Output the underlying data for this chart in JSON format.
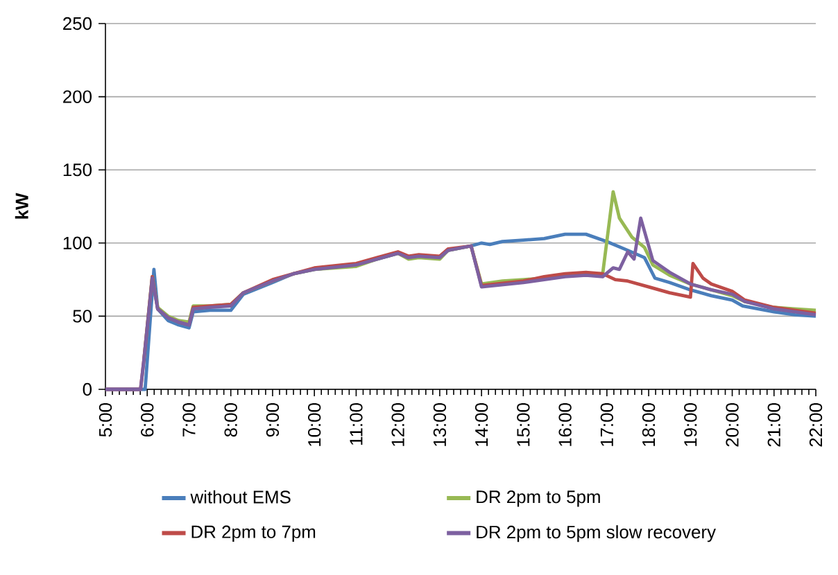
{
  "chart_data": {
    "type": "line",
    "ylabel": "kW",
    "xlim": [
      5,
      22
    ],
    "ylim": [
      0,
      250
    ],
    "xticks": [
      {
        "value": 5,
        "label": "5:00"
      },
      {
        "value": 6,
        "label": "6:00"
      },
      {
        "value": 7,
        "label": "7:00"
      },
      {
        "value": 8,
        "label": "8:00"
      },
      {
        "value": 9,
        "label": "9:00"
      },
      {
        "value": 10,
        "label": "10:00"
      },
      {
        "value": 11,
        "label": "11:00"
      },
      {
        "value": 12,
        "label": "12:00"
      },
      {
        "value": 13,
        "label": "13:00"
      },
      {
        "value": 14,
        "label": "14:00"
      },
      {
        "value": 15,
        "label": "15:00"
      },
      {
        "value": 16,
        "label": "16:00"
      },
      {
        "value": 17,
        "label": "17:00"
      },
      {
        "value": 18,
        "label": "18:00"
      },
      {
        "value": 19,
        "label": "19:00"
      },
      {
        "value": 20,
        "label": "20:00"
      },
      {
        "value": 21,
        "label": "21:00"
      },
      {
        "value": 22,
        "label": "22:00"
      }
    ],
    "yticks": [
      0,
      50,
      100,
      150,
      200,
      250
    ],
    "grid": "y",
    "legend": "bottom",
    "marker": "none",
    "line_style": "solid",
    "series": [
      {
        "name": "without EMS",
        "color": "#4a7ebb",
        "x": [
          5,
          5.84,
          5.95,
          6.16,
          6.25,
          6.5,
          6.75,
          7.0,
          7.1,
          7.5,
          8.0,
          8.3,
          9.0,
          9.5,
          10,
          11,
          11.5,
          12,
          12.25,
          12.5,
          13,
          13.2,
          13.75,
          14.0,
          14.2,
          14.5,
          15,
          15.5,
          16,
          16.5,
          17.0,
          17.5,
          17.9,
          18.15,
          18.5,
          19,
          19.5,
          20,
          20.25,
          21,
          21.5,
          22
        ],
        "values": [
          0,
          0,
          0,
          82,
          55,
          47,
          44,
          42,
          53,
          54,
          54,
          65,
          73,
          79,
          82,
          85,
          89,
          93,
          90,
          91,
          90,
          95,
          98,
          100,
          99,
          101,
          102,
          103,
          106,
          106,
          101,
          95,
          90,
          76,
          73,
          68,
          64,
          61,
          57,
          53,
          51,
          50
        ]
      },
      {
        "name": "DR 2pm to 5pm",
        "color": "#98b954",
        "x": [
          5.92,
          6.12,
          6.25,
          6.5,
          6.75,
          7.0,
          7.1,
          7.5,
          8.0,
          8.3,
          9.0,
          9.5,
          10,
          11,
          11.5,
          12,
          12.25,
          12.5,
          13,
          13.2,
          13.75,
          14.0,
          14.5,
          15,
          15.5,
          16,
          16.5,
          16.9,
          17.15,
          17.3,
          17.6,
          17.9,
          18.1,
          18.5,
          19,
          19.5,
          20,
          20.3,
          21,
          21.5,
          22
        ],
        "values": [
          20,
          77,
          56,
          50,
          47,
          46,
          57,
          57,
          58,
          66,
          74,
          79,
          82,
          84,
          89,
          93,
          89,
          90,
          89,
          95,
          98,
          72,
          74,
          75,
          76,
          78,
          79,
          79,
          135,
          117,
          104,
          97,
          85,
          78,
          72,
          68,
          64,
          60,
          56,
          55,
          54
        ]
      },
      {
        "name": "DR 2pm to 7pm",
        "color": "#be4b48",
        "x": [
          5,
          5.84,
          5.92,
          6.12,
          6.25,
          6.5,
          6.75,
          7.0,
          7.1,
          7.5,
          8.0,
          8.3,
          9.0,
          9.5,
          10,
          11,
          11.5,
          12,
          12.25,
          12.5,
          13,
          13.2,
          13.75,
          14.0,
          15,
          15.5,
          16,
          16.5,
          16.9,
          17.2,
          17.5,
          18,
          18.5,
          19,
          19.06,
          19.3,
          19.5,
          20,
          20.3,
          21,
          21.5,
          22
        ],
        "values": [
          0,
          0,
          20,
          77,
          55,
          49,
          46,
          44,
          56,
          57,
          58,
          66,
          75,
          79,
          83,
          86,
          90,
          94,
          91,
          92,
          91,
          96,
          98,
          71,
          74,
          77,
          79,
          80,
          79,
          75,
          74,
          70,
          66,
          63,
          86,
          76,
          72,
          67,
          61,
          56,
          54,
          52
        ]
      },
      {
        "name": "DR 2pm to 5pm slow recovery",
        "color": "#7d60a0",
        "x": [
          5,
          5.84,
          5.92,
          6.12,
          6.25,
          6.5,
          6.75,
          7.0,
          7.1,
          7.5,
          8.0,
          8.3,
          9.0,
          9.5,
          10,
          11,
          11.5,
          12,
          12.25,
          12.5,
          13,
          13.2,
          13.75,
          14.0,
          15,
          16,
          16.5,
          16.9,
          17.15,
          17.3,
          17.5,
          17.65,
          17.81,
          18.1,
          18.5,
          19,
          19.5,
          20,
          20.3,
          21,
          21.5,
          22
        ],
        "values": [
          0,
          0,
          20,
          76,
          55,
          49,
          46,
          44,
          55,
          56,
          57,
          66,
          74,
          79,
          82,
          85,
          89,
          93,
          90,
          91,
          90,
          95,
          98,
          70,
          73,
          77,
          78,
          77,
          83,
          82,
          94,
          89,
          117,
          88,
          80,
          72,
          68,
          65,
          60,
          55,
          53,
          51
        ]
      }
    ]
  }
}
